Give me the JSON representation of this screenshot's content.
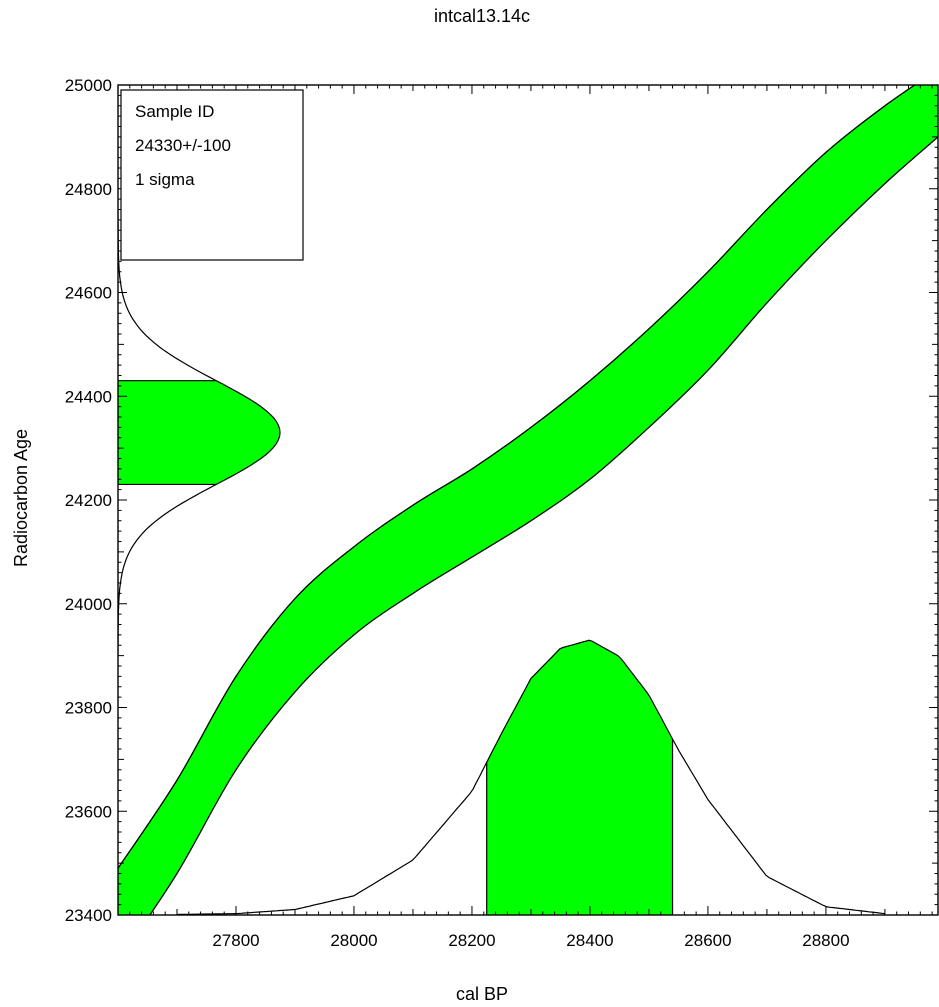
{
  "chart_data": {
    "type": "area",
    "title": "intcal13.14c",
    "xlabel": "cal BP",
    "ylabel": "Radiocarbon Age",
    "xlim": [
      27600,
      28990
    ],
    "ylim": [
      23400,
      25000
    ],
    "xticks": [
      27800,
      28000,
      28200,
      28400,
      28600,
      28800
    ],
    "yticks": [
      23400,
      23600,
      23800,
      24000,
      24200,
      24400,
      24600,
      24800,
      25000
    ],
    "legend": {
      "position": "top-left",
      "lines": [
        "Sample ID",
        "24330+/-100",
        "1 sigma"
      ]
    },
    "fill_color": "#00ff00",
    "line_color": "#000000",
    "calibration_curve": {
      "x": [
        27600,
        27700,
        27800,
        27900,
        28000,
        28100,
        28200,
        28300,
        28400,
        28500,
        28600,
        28700,
        28800,
        28900,
        28990
      ],
      "upper": [
        23490,
        23660,
        23860,
        24010,
        24110,
        24190,
        24260,
        24340,
        24430,
        24530,
        24640,
        24760,
        24870,
        24960,
        25030
      ],
      "lower": [
        23310,
        23480,
        23680,
        23830,
        23940,
        24020,
        24090,
        24160,
        24240,
        24340,
        24450,
        24580,
        24700,
        24810,
        24900
      ]
    },
    "radiocarbon_distribution": {
      "mean": 24330,
      "sigma": 100,
      "one_sigma_range": [
        24230,
        24430
      ]
    },
    "calendar_distribution": {
      "x": [
        27700,
        27800,
        27900,
        28000,
        28100,
        28200,
        28250,
        28300,
        28350,
        28400,
        28450,
        28500,
        28550,
        28600,
        28700,
        28800,
        28900
      ],
      "density": [
        0.002,
        0.005,
        0.02,
        0.07,
        0.2,
        0.45,
        0.66,
        0.86,
        0.97,
        1.0,
        0.94,
        0.8,
        0.6,
        0.42,
        0.14,
        0.03,
        0.005
      ],
      "one_sigma_range": [
        28225,
        28540
      ]
    }
  }
}
